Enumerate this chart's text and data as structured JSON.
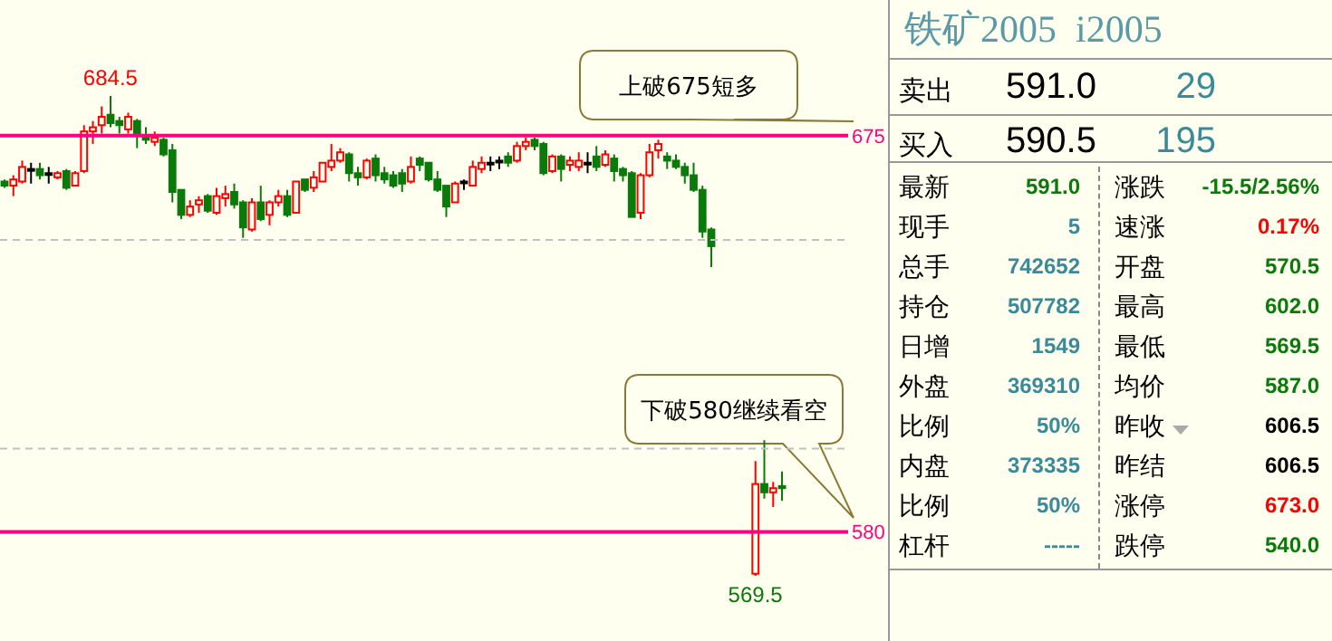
{
  "chart_data": [
    {
      "type": "candlestick",
      "categories": [
        null,
        null,
        null,
        null,
        null,
        null,
        null,
        null,
        null,
        null,
        null,
        null,
        null,
        null,
        null,
        null,
        null,
        null,
        null,
        null,
        null,
        null,
        null,
        null,
        null,
        null,
        null,
        null,
        null,
        null,
        null,
        null,
        null,
        null,
        null,
        null,
        null,
        null,
        null,
        null,
        null,
        null,
        null,
        null,
        null,
        null,
        null,
        null,
        null,
        null,
        null,
        null,
        null,
        null,
        null,
        null,
        null,
        null,
        null,
        null,
        null,
        null,
        null,
        null,
        null,
        null,
        null,
        null,
        null,
        null,
        null,
        null,
        null,
        null,
        null,
        null,
        null,
        null,
        null,
        null,
        null,
        null,
        null,
        null,
        null,
        null,
        null,
        null,
        null,
        null,
        null,
        null,
        null,
        null,
        null,
        null
      ],
      "ohlc": [
        [
          664,
          664.5,
          662.5,
          663
        ],
        [
          663,
          665.5,
          660.5,
          664.5
        ],
        [
          664,
          669,
          663.5,
          667.5
        ],
        [
          667,
          668.5,
          663.5,
          667
        ],
        [
          667,
          668.5,
          664.5,
          665.5
        ],
        [
          666,
          667.5,
          663.5,
          666
        ],
        [
          665,
          666.5,
          664.5,
          666
        ],
        [
          666.5,
          667,
          662,
          662.5
        ],
        [
          663,
          666.5,
          663,
          666
        ],
        [
          666.5,
          677.5,
          666,
          676
        ],
        [
          676,
          678.5,
          673,
          677
        ],
        [
          677.5,
          682,
          675.5,
          679.5
        ],
        [
          680,
          684.5,
          677,
          678
        ],
        [
          678.5,
          679.5,
          675.5,
          677.5
        ],
        [
          676.5,
          680.5,
          675.5,
          679.5
        ],
        [
          678.5,
          679,
          672,
          675
        ],
        [
          674.5,
          677,
          673,
          674
        ],
        [
          673.5,
          676,
          672.5,
          674.5
        ],
        [
          674,
          674.5,
          670,
          670.5
        ],
        [
          671.5,
          673,
          659,
          661.5
        ],
        [
          662,
          662,
          655,
          656
        ],
        [
          656,
          659.5,
          655.5,
          658
        ],
        [
          658.5,
          660.5,
          656.5,
          659.5
        ],
        [
          660.5,
          661,
          656.5,
          657
        ],
        [
          656.5,
          662.5,
          656,
          660.5
        ],
        [
          660,
          663,
          658,
          661
        ],
        [
          661.5,
          663.5,
          657.5,
          658.5
        ],
        [
          659,
          659.5,
          650.5,
          653
        ],
        [
          652.5,
          660,
          652,
          659
        ],
        [
          659,
          663,
          654.5,
          655
        ],
        [
          656,
          659.5,
          653.5,
          659
        ],
        [
          659,
          662,
          658,
          660.5
        ],
        [
          660.5,
          662,
          655.5,
          656
        ],
        [
          656.5,
          664,
          656.5,
          664
        ],
        [
          664.5,
          664.5,
          661.5,
          662
        ],
        [
          662.5,
          666.5,
          661.5,
          665
        ],
        [
          664,
          668.5,
          664,
          668.5
        ],
        [
          667.5,
          673,
          666.5,
          669
        ],
        [
          669,
          672,
          668.5,
          671
        ],
        [
          670.5,
          671,
          664,
          666
        ],
        [
          666,
          667.5,
          663,
          665
        ],
        [
          665,
          669.5,
          664.5,
          669
        ],
        [
          669.5,
          670.5,
          664,
          665.5
        ],
        [
          666,
          667.5,
          663.5,
          664.5
        ],
        [
          665.5,
          666.5,
          662.5,
          663
        ],
        [
          666,
          667,
          661.5,
          663.5
        ],
        [
          664,
          670,
          663.5,
          667.5
        ],
        [
          669.5,
          670,
          666.5,
          668
        ],
        [
          668.5,
          668.5,
          664,
          664.5
        ],
        [
          664.5,
          666.5,
          661.5,
          662
        ],
        [
          663,
          663,
          655.5,
          658
        ],
        [
          659,
          664,
          659,
          663.5
        ],
        [
          664,
          664.5,
          662,
          664
        ],
        [
          663,
          669,
          663,
          667.5
        ],
        [
          667,
          670,
          666,
          668.5
        ],
        [
          668.5,
          670,
          666.5,
          668.5
        ],
        [
          669,
          670,
          667,
          669
        ],
        [
          670,
          671,
          667.5,
          668.5
        ],
        [
          669,
          673.5,
          668.5,
          672.5
        ],
        [
          672.5,
          674.5,
          671.5,
          673.5
        ],
        [
          674,
          674.5,
          671.5,
          672.5
        ],
        [
          673,
          673.5,
          665.5,
          666
        ],
        [
          666.5,
          670.5,
          666,
          670
        ],
        [
          670,
          670.5,
          664,
          667
        ],
        [
          668,
          670,
          666.5,
          669
        ],
        [
          667.5,
          671,
          666.5,
          669
        ],
        [
          668.5,
          671,
          666,
          668.5
        ],
        [
          670,
          672.5,
          666.5,
          667.5
        ],
        [
          668,
          671.5,
          667.5,
          670.5
        ],
        [
          669.5,
          670.5,
          664,
          666.5
        ],
        [
          667,
          667.5,
          664,
          665.5
        ],
        [
          666,
          666.5,
          655.5,
          655.5
        ],
        [
          656.5,
          666,
          655,
          665.5
        ],
        [
          665.5,
          673,
          665,
          671
        ],
        [
          671.5,
          674,
          669.5,
          673
        ],
        [
          670,
          671,
          667,
          669
        ],
        [
          669,
          670.5,
          667,
          667.5
        ],
        [
          667.5,
          668.5,
          663.5,
          665.5
        ],
        [
          665.5,
          668.5,
          661.5,
          662
        ],
        [
          662,
          663,
          650.5,
          652
        ],
        [
          652.5,
          653,
          643.5,
          648.5
        ],
        null,
        null,
        null,
        null,
        [
          570,
          597,
          569.5,
          591.5
        ],
        [
          591.5,
          602,
          588,
          589.5
        ],
        [
          589.5,
          592,
          586,
          590.5
        ],
        [
          591,
          594.5,
          587.5,
          590.5
        ],
        null,
        null,
        null,
        null,
        null,
        null,
        null
      ],
      "ref_lines": [
        {
          "axis": "y",
          "value": 675,
          "label": "675",
          "color": "#ff0080"
        },
        {
          "axis": "y",
          "value": 580,
          "label": "580",
          "color": "#ff0080"
        },
        {
          "axis": "y",
          "value": 650,
          "label": null,
          "color": "#c0c0c0",
          "line_style": "dashed"
        },
        {
          "axis": "y",
          "value": 600,
          "label": null,
          "color": "#c0c0c0",
          "line_style": "dashed"
        }
      ],
      "annotations": [
        {
          "text": "684.5",
          "y": 684.5
        },
        {
          "text": "569.5",
          "y": 569.5
        },
        "上破675短多",
        "下破580继续看空"
      ]
    },
    {
      "type": "other",
      "title": "铁矿2005  i2005",
      "annotations": [
        "卖出",
        "591.0",
        "29",
        "买入",
        "590.5",
        "195",
        "最新",
        "591.0",
        "涨跌",
        "-15.5/2.56%",
        "现手",
        "5",
        "速涨",
        "0.17%",
        "总手",
        "742652",
        "开盘",
        "570.5",
        "持仓",
        "507782",
        "最高",
        "602.0",
        "日增",
        "1549",
        "最低",
        "569.5",
        "外盘",
        "369310",
        "均价",
        "587.0",
        "比例",
        "50%",
        "昨收",
        "606.5",
        "内盘",
        "373335",
        "昨结",
        "606.5",
        "比例",
        "50%",
        "涨停",
        "673.0",
        "杠杆",
        "-----",
        "跌停",
        "540.0"
      ]
    }
  ]
}
